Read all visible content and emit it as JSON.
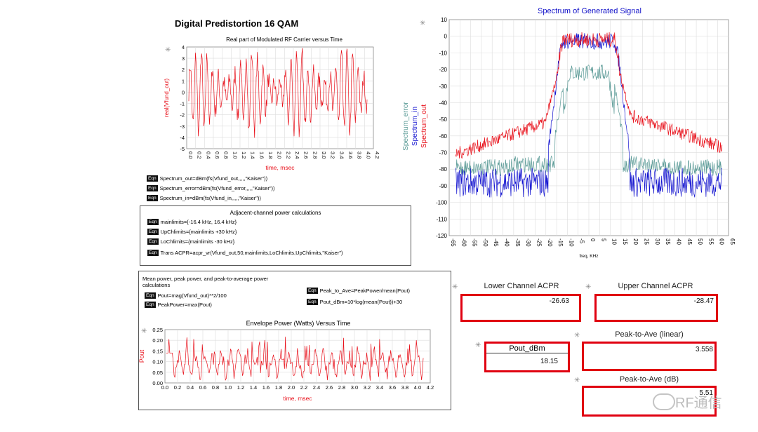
{
  "page_title": "Digital Predistortion 16 QAM",
  "watermark": "RF通信",
  "charts": {
    "carrier": {
      "title": "Real part of Modulated RF Carrier versus Time",
      "ylabel": "real(Vfund_out)",
      "xlabel": "time, msec",
      "yticks": [
        "4",
        "3",
        "2",
        "1",
        "0",
        "-1",
        "-2",
        "-3",
        "-4",
        "-5"
      ],
      "xticks": [
        "0.0",
        "0.2",
        "0.4",
        "0.6",
        "0.8",
        "1.0",
        "1.2",
        "1.4",
        "1.6",
        "1.8",
        "2.0",
        "2.2",
        "2.4",
        "2.6",
        "2.8",
        "3.0",
        "3.2",
        "3.4",
        "3.6",
        "3.8",
        "4.0",
        "4.2"
      ]
    },
    "spectrum": {
      "title": "Spectrum of Generated Signal",
      "ylabel_series": [
        "Spectrum_error",
        "Spectrum_in",
        "Spectrum_out"
      ],
      "xlabel": "freq, KHz",
      "yticks": [
        "10",
        "0",
        "-10",
        "-20",
        "-30",
        "-40",
        "-50",
        "-60",
        "-70",
        "-80",
        "-90",
        "-100",
        "-110",
        "-120"
      ],
      "xticks": [
        "-65",
        "-60",
        "-55",
        "-50",
        "-45",
        "-40",
        "-35",
        "-30",
        "-25",
        "-20",
        "-15",
        "-10",
        "-5",
        "0",
        "5",
        "10",
        "15",
        "20",
        "25",
        "30",
        "35",
        "40",
        "45",
        "50",
        "55",
        "60",
        "65"
      ]
    },
    "envelope": {
      "title": "Envelope Power (Watts) Versus Time",
      "ylabel": "Pout",
      "xlabel": "time, msec",
      "yticks": [
        "0.25",
        "0.20",
        "0.15",
        "0.10",
        "0.05",
        "0.00"
      ],
      "xticks": [
        "0.0",
        "0.2",
        "0.4",
        "0.6",
        "0.8",
        "1.0",
        "1.2",
        "1.4",
        "1.6",
        "1.8",
        "2.0",
        "2.2",
        "2.4",
        "2.6",
        "2.8",
        "3.0",
        "3.2",
        "3.4",
        "3.6",
        "3.8",
        "4.0",
        "4.2"
      ]
    }
  },
  "equations": {
    "spectrum": [
      "Spectrum_out=dBm(fs(Vfund_out,,,,,\"Kaiser\"))",
      "Spectrum_error=dBm(fs(Vfund_error,,,,,\"Kaiser\"))",
      "Spectrum_in=dBm(fs(Vfund_in,,,,,\"Kaiser\"))"
    ],
    "acpr_title": "Adjacent-channel power calculations",
    "acpr": [
      "mainlimits={-16.4 kHz, 16.4 kHz}",
      "UpChlimits={mainlimits +30 kHz}",
      "LoChlimits={mainlimits -30 kHz}",
      "Trans ACPR=acpr_vr(Vfund_out,50,mainlimits,LoChlimits,UpChlimits,\"Kaiser\")"
    ],
    "power_title": "Mean power, peak power, and peak-to-average power calculations",
    "power_left": [
      "Pout=mag(Vfund_out)**2/100",
      "PeakPower=max(Pout)"
    ],
    "power_right": [
      "Peak_to_Ave=PeakPower/mean(Pout)",
      "Pout_dBm=10*log(mean(Pout))+30"
    ],
    "tag": "Eqn"
  },
  "results": {
    "lower_acpr": {
      "label": "Lower Channel ACPR",
      "value": "-26.63"
    },
    "upper_acpr": {
      "label": "Upper Channel ACPR",
      "value": "-28.47"
    },
    "peak_lin": {
      "label": "Peak-to-Ave (linear)",
      "value": "3.558"
    },
    "pout_dbm": {
      "label": "Pout_dBm",
      "value": "18.15"
    },
    "peak_db": {
      "label": "Peak-to-Ave (dB)",
      "value": "5.51"
    }
  },
  "colors": {
    "red": "#e8101a",
    "blue": "#1414d0",
    "teal": "#5a9a96",
    "highlight": "#e00010"
  }
}
